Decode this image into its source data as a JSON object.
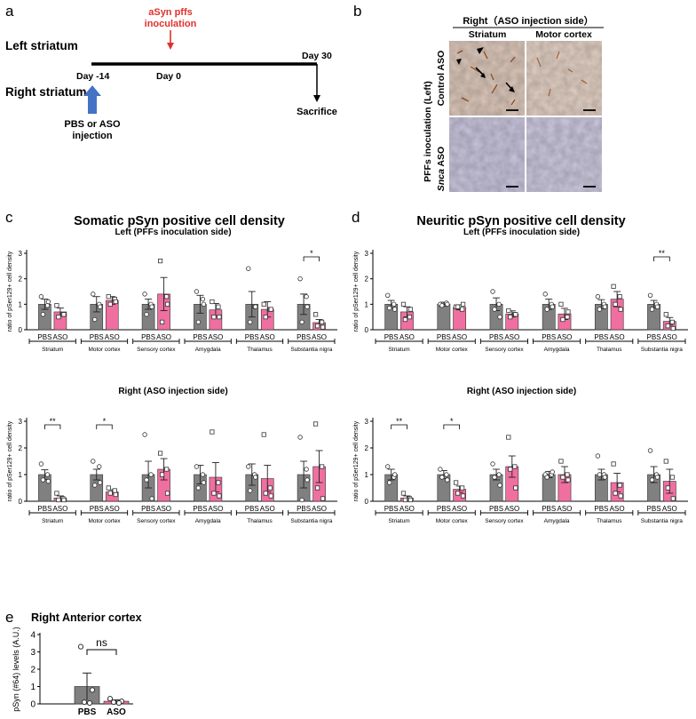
{
  "panel_labels": {
    "a": "a",
    "b": "b",
    "c": "c",
    "d": "d",
    "e": "e"
  },
  "timeline": {
    "left_striatum": "Left striatum",
    "right_striatum": "Right striatum",
    "pffs_label_1": "aSyn pffs",
    "pffs_label_2": "inoculation",
    "day_minus14": "Day -14",
    "day_0": "Day 0",
    "day_30": "Day 30",
    "pbs_aso_1": "PBS or ASO",
    "pbs_aso_2": "injection",
    "sacrifice": "Sacrifice",
    "colors": {
      "red": "#e0302c",
      "blue": "#4472c4"
    }
  },
  "micrographs": {
    "header": "Right（ASO injection side）",
    "col_striatum": "Striatum",
    "col_motor": "Motor cortex",
    "side_label": "PFFs inoculation (Left)",
    "row_control": "Control ASO",
    "row_snca_italic": "Snca",
    "row_snca_rest": " ASO"
  },
  "regions": [
    "Striatum",
    "Motor cortex",
    "Sensory cortex",
    "Amygdala",
    "Thalamus",
    "Substantia nigra"
  ],
  "group_labels": [
    "PBS",
    "ASO"
  ],
  "colors": {
    "pbs": "#808080",
    "aso": "#ef6fa0"
  },
  "chart_data": [
    {
      "id": "c_left",
      "type": "bar",
      "panel_title": "Somatic pSyn positive cell density",
      "title": "Left (PFFs inoculation side)",
      "ylabel": "ratio of pSer129+ cell density",
      "ylim": [
        0,
        3
      ],
      "yticks": [
        0,
        1,
        2,
        3
      ],
      "series": [
        {
          "name": "PBS",
          "values": [
            1.0,
            1.0,
            1.0,
            1.0,
            1.0,
            1.0
          ],
          "sem": [
            0.2,
            0.3,
            0.2,
            0.35,
            0.5,
            0.4
          ]
        },
        {
          "name": "ASO",
          "values": [
            0.7,
            1.15,
            1.4,
            0.78,
            0.8,
            0.28
          ],
          "sem": [
            0.15,
            0.15,
            0.65,
            0.25,
            0.3,
            0.12
          ]
        }
      ],
      "points": {
        "pbs": [
          [
            1.3,
            0.95,
            0.6,
            1.1
          ],
          [
            1.4,
            1.0,
            0.4,
            0.9
          ],
          [
            1.4,
            1.0,
            0.6,
            0.9
          ],
          [
            1.5,
            1.2,
            0.3,
            1.0
          ],
          [
            2.4,
            0.9,
            0.3,
            0.9
          ],
          [
            2.0,
            1.3,
            0.3,
            0.9
          ]
        ],
        "aso": [
          [
            0.95,
            0.6,
            0.5,
            0.6
          ],
          [
            1.3,
            1.2,
            1.0,
            1.1
          ],
          [
            2.7,
            1.3,
            0.3,
            1.0
          ],
          [
            1.1,
            0.9,
            0.5,
            0.5
          ],
          [
            1.0,
            0.8,
            0.5,
            0.8
          ],
          [
            0.6,
            0.3,
            0.15,
            0.1
          ]
        ]
      },
      "significance": [
        {
          "region": 5,
          "label": "*"
        }
      ]
    },
    {
      "id": "d_left",
      "type": "bar",
      "panel_title": "Neuritic pSyn positive cell density",
      "title": "Left (PFFs inoculation side)",
      "ylabel": "ratio of pSer129+ cell density",
      "ylim": [
        0,
        3
      ],
      "yticks": [
        0,
        1,
        2,
        3
      ],
      "series": [
        {
          "name": "PBS",
          "values": [
            1.0,
            1.0,
            1.0,
            1.0,
            1.0,
            1.0
          ],
          "sem": [
            0.15,
            0.08,
            0.25,
            0.2,
            0.18,
            0.15
          ]
        },
        {
          "name": "ASO",
          "values": [
            0.7,
            0.88,
            0.62,
            0.62,
            1.2,
            0.33
          ],
          "sem": [
            0.2,
            0.1,
            0.12,
            0.22,
            0.3,
            0.15
          ]
        }
      ],
      "points": {
        "pbs": [
          [
            1.35,
            1.0,
            0.85,
            0.8
          ],
          [
            1.0,
            1.05,
            0.95,
            1.0
          ],
          [
            1.5,
            1.0,
            0.8,
            0.5
          ],
          [
            1.4,
            1.0,
            0.8,
            0.9
          ],
          [
            1.3,
            1.0,
            0.8,
            0.9
          ],
          [
            1.35,
            1.0,
            0.8,
            0.9
          ]
        ],
        "aso": [
          [
            1.0,
            0.5,
            0.4,
            0.8
          ],
          [
            0.9,
            0.8,
            0.9,
            1.0
          ],
          [
            0.75,
            0.6,
            0.5,
            0.6
          ],
          [
            1.0,
            0.5,
            0.4,
            0.7
          ],
          [
            1.7,
            1.3,
            1.0,
            0.8
          ],
          [
            0.6,
            0.3,
            0.15,
            0.05
          ]
        ]
      },
      "significance": [
        {
          "region": 5,
          "label": "**"
        }
      ]
    },
    {
      "id": "c_right",
      "type": "bar",
      "title": "Right (ASO injection side)",
      "ylabel": "ratio of pSer129+ cell density",
      "ylim": [
        0,
        3
      ],
      "yticks": [
        0,
        1,
        2,
        3
      ],
      "series": [
        {
          "name": "PBS",
          "values": [
            1.0,
            1.0,
            1.0,
            1.0,
            1.0,
            1.0
          ],
          "sem": [
            0.18,
            0.2,
            0.5,
            0.35,
            0.4,
            0.5
          ]
        },
        {
          "name": "ASO",
          "values": [
            0.12,
            0.35,
            1.2,
            0.9,
            0.85,
            1.3
          ],
          "sem": [
            0.08,
            0.08,
            0.4,
            0.55,
            0.5,
            0.6
          ]
        }
      ],
      "points": {
        "pbs": [
          [
            1.4,
            1.0,
            0.8,
            0.75
          ],
          [
            1.5,
            1.3,
            0.6,
            0.7
          ],
          [
            2.5,
            1.0,
            0.8,
            0.1
          ],
          [
            1.3,
            1.0,
            0.5,
            0.7
          ],
          [
            1.3,
            1.0,
            0.4,
            0.9
          ],
          [
            2.4,
            1.2,
            0.05,
            0.8
          ]
        ],
        "aso": [
          [
            0.3,
            0.1,
            0.05,
            0.05
          ],
          [
            0.5,
            0.4,
            0.3,
            0.25
          ],
          [
            1.8,
            1.2,
            1.0,
            0.3
          ],
          [
            2.6,
            0.7,
            0.3,
            0.2
          ],
          [
            2.5,
            0.5,
            0.3,
            0.2
          ],
          [
            2.9,
            1.3,
            0.5,
            0.1
          ]
        ]
      },
      "significance": [
        {
          "region": 0,
          "label": "**"
        },
        {
          "region": 1,
          "label": "*"
        }
      ]
    },
    {
      "id": "d_right",
      "type": "bar",
      "title": "Right (ASO injection side)",
      "ylabel": "ratio of pSer129+ cell density",
      "ylim": [
        0,
        3
      ],
      "yticks": [
        0,
        1,
        2,
        3
      ],
      "series": [
        {
          "name": "PBS",
          "values": [
            1.0,
            1.0,
            1.0,
            1.0,
            1.0,
            1.0
          ],
          "sem": [
            0.2,
            0.15,
            0.2,
            0.12,
            0.2,
            0.3
          ]
        },
        {
          "name": "ASO",
          "values": [
            0.12,
            0.45,
            1.3,
            1.0,
            0.7,
            0.75
          ],
          "sem": [
            0.08,
            0.12,
            0.4,
            0.3,
            0.35,
            0.45
          ]
        }
      ],
      "points": {
        "pbs": [
          [
            1.3,
            0.9,
            0.7,
            1.0
          ],
          [
            1.2,
            1.0,
            0.9,
            0.8
          ],
          [
            1.4,
            1.0,
            0.9,
            0.6
          ],
          [
            1.0,
            1.0,
            0.9,
            1.1
          ],
          [
            1.7,
            1.0,
            1.0,
            0.9
          ],
          [
            1.9,
            1.0,
            0.8,
            0.9
          ]
        ],
        "aso": [
          [
            0.3,
            0.1,
            0.05,
            0.05
          ],
          [
            0.7,
            0.5,
            0.3,
            0.2
          ],
          [
            2.4,
            1.3,
            1.2,
            0.5
          ],
          [
            1.5,
            1.0,
            0.9,
            0.8
          ],
          [
            1.4,
            0.6,
            0.3,
            0.2
          ],
          [
            1.5,
            0.9,
            0.5,
            0.1
          ]
        ]
      },
      "significance": [
        {
          "region": 0,
          "label": "**"
        },
        {
          "region": 1,
          "label": "*"
        }
      ]
    },
    {
      "id": "e",
      "type": "bar",
      "title": "Right Anterior cortex",
      "ylabel": "pSyn (#64) levels (A.U.)",
      "ylim": [
        0,
        4
      ],
      "yticks": [
        0,
        1,
        2,
        3,
        4
      ],
      "categories": [
        "PBS",
        "ASO"
      ],
      "values": [
        1.0,
        0.15
      ],
      "sem": [
        0.78,
        0.08
      ],
      "points": {
        "pbs": [
          3.3,
          0.8,
          0.1,
          0.05
        ],
        "aso": [
          0.3,
          0.15,
          0.1,
          0.05
        ]
      },
      "significance": [
        {
          "label": "ns"
        }
      ]
    }
  ]
}
